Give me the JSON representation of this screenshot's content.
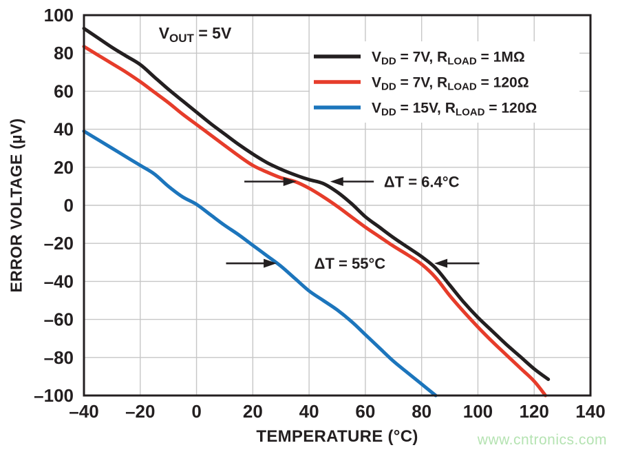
{
  "watermark": "www.cntronics.com",
  "colors": {
    "background": "#ffffff",
    "grid": "#c6c6c6",
    "axis": "#231f20",
    "text": "#231f20",
    "watermark": "#b5e3b2",
    "series_black": "#231f20",
    "series_red": "#e63c2a",
    "series_blue": "#1c75bc"
  },
  "chart_data": {
    "type": "line",
    "title": "",
    "xlabel": "TEMPERATURE (°C)",
    "ylabel": "ERROR VOLTAGE (µV)",
    "xlim": [
      -40,
      140
    ],
    "ylim": [
      -100,
      100
    ],
    "grid": true,
    "legend_position": "top-right",
    "x_tick_values": [
      -40,
      -20,
      0,
      20,
      40,
      60,
      80,
      100,
      120,
      140
    ],
    "x_tick_labels": [
      "–40",
      "–20",
      "0",
      "20",
      "40",
      "60",
      "80",
      "100",
      "120",
      "140"
    ],
    "y_tick_values": [
      100,
      80,
      60,
      40,
      20,
      0,
      -20,
      -40,
      -60,
      -80,
      -100
    ],
    "y_tick_labels": [
      "100",
      "80",
      "60",
      "40",
      "20",
      "0",
      "–20",
      "–40",
      "–60",
      "–80",
      "–100"
    ],
    "series": [
      {
        "key": "vdd-7v-rload-1mohm",
        "name": "V_{DD} = 7V, R_{LOAD} = 1MΩ",
        "color": "#231f20",
        "points": [
          [
            -40,
            93
          ],
          [
            -35,
            88
          ],
          [
            -30,
            83
          ],
          [
            -25,
            78.5
          ],
          [
            -20,
            74
          ],
          [
            -15,
            67.5
          ],
          [
            -10,
            61
          ],
          [
            -5,
            55
          ],
          [
            0,
            49
          ],
          [
            5,
            43
          ],
          [
            10,
            37.5
          ],
          [
            15,
            32
          ],
          [
            20,
            27
          ],
          [
            25,
            22.5
          ],
          [
            30,
            19
          ],
          [
            35,
            16
          ],
          [
            40,
            13.5
          ],
          [
            45,
            11.5
          ],
          [
            50,
            7
          ],
          [
            55,
            1
          ],
          [
            60,
            -6
          ],
          [
            65,
            -11.5
          ],
          [
            70,
            -17
          ],
          [
            75,
            -22
          ],
          [
            80,
            -27
          ],
          [
            85,
            -33
          ],
          [
            90,
            -42
          ],
          [
            95,
            -51
          ],
          [
            100,
            -59
          ],
          [
            105,
            -66
          ],
          [
            110,
            -73
          ],
          [
            115,
            -79.5
          ],
          [
            120,
            -86
          ],
          [
            125,
            -91.5
          ]
        ]
      },
      {
        "key": "vdd-7v-rload-120ohm",
        "name": "V_{DD} = 7V, R_{LOAD} = 120Ω",
        "color": "#e63c2a",
        "points": [
          [
            -40,
            83.5
          ],
          [
            -35,
            79
          ],
          [
            -30,
            74.5
          ],
          [
            -25,
            70
          ],
          [
            -20,
            65
          ],
          [
            -15,
            59.5
          ],
          [
            -10,
            54
          ],
          [
            -5,
            48
          ],
          [
            0,
            42.5
          ],
          [
            5,
            37
          ],
          [
            10,
            31.5
          ],
          [
            15,
            26
          ],
          [
            20,
            21
          ],
          [
            25,
            17.5
          ],
          [
            30,
            14.5
          ],
          [
            35,
            12.5
          ],
          [
            40,
            9
          ],
          [
            45,
            4.5
          ],
          [
            50,
            -0.5
          ],
          [
            55,
            -6
          ],
          [
            60,
            -11.5
          ],
          [
            65,
            -16.5
          ],
          [
            70,
            -21.5
          ],
          [
            75,
            -26
          ],
          [
            80,
            -31
          ],
          [
            85,
            -38
          ],
          [
            90,
            -47.5
          ],
          [
            95,
            -56
          ],
          [
            100,
            -64
          ],
          [
            105,
            -71.5
          ],
          [
            110,
            -78.5
          ],
          [
            115,
            -85.5
          ],
          [
            120,
            -92.5
          ],
          [
            124,
            -100
          ]
        ]
      },
      {
        "key": "vdd-15v-rload-120ohm",
        "name": "V_{DD} = 15V, R_{LOAD} = 120Ω",
        "color": "#1c75bc",
        "points": [
          [
            -40,
            39
          ],
          [
            -35,
            34.5
          ],
          [
            -30,
            30
          ],
          [
            -25,
            25.5
          ],
          [
            -20,
            21
          ],
          [
            -15,
            16.5
          ],
          [
            -10,
            10
          ],
          [
            -5,
            4.5
          ],
          [
            0,
            0.5
          ],
          [
            5,
            -5
          ],
          [
            10,
            -10.5
          ],
          [
            15,
            -15.5
          ],
          [
            20,
            -21
          ],
          [
            25,
            -26.5
          ],
          [
            30,
            -32
          ],
          [
            35,
            -38.5
          ],
          [
            40,
            -45
          ],
          [
            45,
            -50
          ],
          [
            50,
            -55
          ],
          [
            55,
            -61
          ],
          [
            60,
            -68
          ],
          [
            65,
            -75
          ],
          [
            70,
            -82
          ],
          [
            75,
            -88
          ],
          [
            80,
            -94
          ],
          [
            85,
            -100
          ]
        ]
      }
    ],
    "annotations": {
      "condition": {
        "text": "V_{OUT} = 5V",
        "x": -0.5,
        "y": 90.5
      },
      "deltas": [
        {
          "text": "ΔT = 6.4°C",
          "y": 12.5,
          "text_x": 80,
          "arrows": [
            {
              "x_tail": 17,
              "x_tip": 35.5
            },
            {
              "x_tail": 63,
              "x_tip": 47.5
            }
          ]
        },
        {
          "text": "ΔT = 55°C",
          "y": -30.5,
          "text_x": 54.5,
          "arrows": [
            {
              "x_tail": 10.5,
              "x_tip": 28.5
            },
            {
              "x_tail": 100.5,
              "x_tip": 84.5
            }
          ]
        }
      ]
    }
  }
}
